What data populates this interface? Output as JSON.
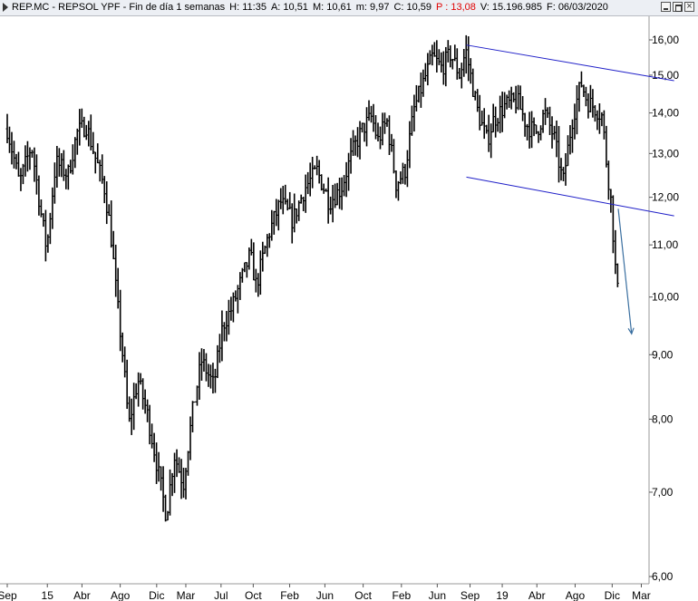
{
  "window": {
    "title_parts": [
      {
        "text": "REP.MC - REPSOL YPF - Fin de día 1 semanas",
        "color": "#000000"
      },
      {
        "text": "H: 11:35",
        "color": "#000000"
      },
      {
        "text": "A: 10,51",
        "color": "#000000"
      },
      {
        "text": "M: 10,61",
        "color": "#000000"
      },
      {
        "text": "m: 9,97",
        "color": "#000000"
      },
      {
        "text": "C: 10,59",
        "color": "#000000"
      },
      {
        "text": "P : 13,08",
        "color": "#e00000"
      },
      {
        "text": "V: 15.196.985",
        "color": "#000000"
      },
      {
        "text": "F: 06/03/2020",
        "color": "#000000"
      }
    ],
    "buttons": [
      "minimize-icon",
      "restore-icon",
      "close-icon"
    ]
  },
  "chart_data": {
    "type": "ohlc",
    "scale": "log",
    "ylim": [
      6.0,
      16.6
    ],
    "y_ticks": [
      {
        "label": "16,00",
        "value": 16.0
      },
      {
        "label": "15,00",
        "value": 15.0
      },
      {
        "label": "14,00",
        "value": 14.0
      },
      {
        "label": "13,00",
        "value": 13.0
      },
      {
        "label": "12,00",
        "value": 12.0
      },
      {
        "label": "11,00",
        "value": 11.0
      },
      {
        "label": "10,00",
        "value": 10.0
      },
      {
        "label": "9,00",
        "value": 9.0
      },
      {
        "label": "8,00",
        "value": 8.0
      },
      {
        "label": "7,00",
        "value": 7.0
      },
      {
        "label": "6,00",
        "value": 6.0
      }
    ],
    "x_ticks": [
      {
        "label": "Sep",
        "t": 0.0
      },
      {
        "label": "15",
        "t": 0.066
      },
      {
        "label": "Abr",
        "t": 0.123
      },
      {
        "label": "Ago",
        "t": 0.186
      },
      {
        "label": "Dic",
        "t": 0.246
      },
      {
        "label": "Mar",
        "t": 0.294
      },
      {
        "label": "Jul",
        "t": 0.352
      },
      {
        "label": "Oct",
        "t": 0.405
      },
      {
        "label": "Feb",
        "t": 0.465
      },
      {
        "label": "Jun",
        "t": 0.523
      },
      {
        "label": "Oct",
        "t": 0.586
      },
      {
        "label": "Feb",
        "t": 0.649
      },
      {
        "label": "Jun",
        "t": 0.708
      },
      {
        "label": "Sep",
        "t": 0.762
      },
      {
        "label": "19",
        "t": 0.815
      },
      {
        "label": "Abr",
        "t": 0.872
      },
      {
        "label": "Ago",
        "t": 0.935
      },
      {
        "label": "Dic",
        "t": 0.996
      },
      {
        "label": "Mar",
        "t": 1.044
      }
    ],
    "price_path": [
      [
        0.0,
        13.6
      ],
      [
        0.02,
        12.3
      ],
      [
        0.04,
        13.2
      ],
      [
        0.055,
        11.7
      ],
      [
        0.065,
        10.9
      ],
      [
        0.08,
        12.8
      ],
      [
        0.1,
        12.5
      ],
      [
        0.115,
        13.5
      ],
      [
        0.13,
        13.7
      ],
      [
        0.145,
        12.9
      ],
      [
        0.16,
        12.2
      ],
      [
        0.17,
        11.3
      ],
      [
        0.18,
        10.0
      ],
      [
        0.19,
        9.0
      ],
      [
        0.2,
        7.9
      ],
      [
        0.215,
        8.6
      ],
      [
        0.23,
        8.1
      ],
      [
        0.25,
        7.2
      ],
      [
        0.262,
        6.7
      ],
      [
        0.275,
        7.5
      ],
      [
        0.29,
        7.1
      ],
      [
        0.305,
        8.1
      ],
      [
        0.32,
        8.9
      ],
      [
        0.34,
        8.5
      ],
      [
        0.355,
        9.5
      ],
      [
        0.37,
        9.8
      ],
      [
        0.385,
        10.3
      ],
      [
        0.4,
        10.8
      ],
      [
        0.41,
        10.2
      ],
      [
        0.43,
        11.2
      ],
      [
        0.45,
        11.9
      ],
      [
        0.47,
        11.5
      ],
      [
        0.49,
        12.2
      ],
      [
        0.51,
        12.6
      ],
      [
        0.53,
        11.9
      ],
      [
        0.55,
        12.2
      ],
      [
        0.57,
        13.1
      ],
      [
        0.585,
        13.6
      ],
      [
        0.6,
        13.9
      ],
      [
        0.61,
        13.3
      ],
      [
        0.625,
        13.8
      ],
      [
        0.64,
        12.3
      ],
      [
        0.655,
        12.6
      ],
      [
        0.67,
        14.1
      ],
      [
        0.685,
        14.8
      ],
      [
        0.7,
        15.5
      ],
      [
        0.715,
        15.2
      ],
      [
        0.73,
        15.6
      ],
      [
        0.745,
        15.0
      ],
      [
        0.755,
        15.7
      ],
      [
        0.765,
        14.8
      ],
      [
        0.775,
        14.0
      ],
      [
        0.79,
        13.3
      ],
      [
        0.8,
        13.8
      ],
      [
        0.82,
        14.2
      ],
      [
        0.84,
        14.3
      ],
      [
        0.855,
        13.7
      ],
      [
        0.87,
        13.5
      ],
      [
        0.885,
        14.0
      ],
      [
        0.9,
        13.4
      ],
      [
        0.915,
        12.3
      ],
      [
        0.93,
        13.8
      ],
      [
        0.945,
        14.8
      ],
      [
        0.955,
        14.3
      ],
      [
        0.97,
        14.1
      ],
      [
        0.98,
        13.9
      ],
      [
        0.985,
        13.0
      ],
      [
        0.99,
        12.4
      ],
      [
        0.995,
        11.8
      ],
      [
        1.0,
        10.7
      ],
      [
        1.005,
        10.1
      ]
    ],
    "trend_lines": [
      {
        "color": "#1f1fc8",
        "points": [
          [
            0.756,
            15.85
          ],
          [
            1.098,
            14.85
          ]
        ]
      },
      {
        "color": "#1f1fc8",
        "points": [
          [
            0.756,
            12.45
          ],
          [
            1.098,
            11.6
          ]
        ]
      }
    ],
    "projection_arrow": {
      "color": "#3a6fa0",
      "points": [
        [
          1.006,
          11.75
        ],
        [
          1.028,
          9.35
        ]
      ]
    }
  }
}
